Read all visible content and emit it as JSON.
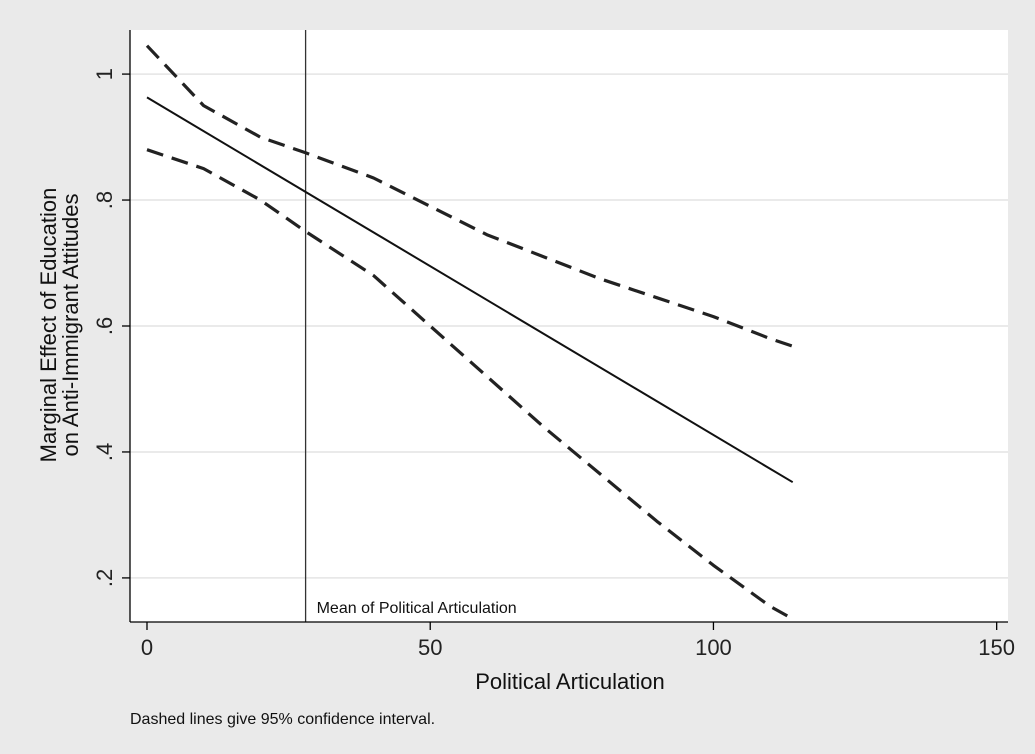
{
  "chart_data": {
    "type": "line",
    "title": "",
    "xlabel": "Political Articulation",
    "ylabel_line1": "Marginal Effect of Education",
    "ylabel_line2": "on Anti-Immigrant Attitudes",
    "note": "Dashed lines give 95% confidence interval.",
    "xlim": [
      -3,
      152
    ],
    "ylim": [
      0.13,
      1.07
    ],
    "xticks": [
      0,
      50,
      100,
      150
    ],
    "xtick_labels": [
      "0",
      "50",
      "100",
      "150"
    ],
    "yticks": [
      0.2,
      0.4,
      0.6,
      0.8,
      1.0
    ],
    "ytick_labels": [
      ".2",
      ".4",
      ".6",
      ".8",
      "1"
    ],
    "grid": true,
    "reference_line": {
      "x": 28,
      "label": "Mean of Political Articulation"
    },
    "series": [
      {
        "style": "solid",
        "color": "#111111",
        "x": [
          0,
          114
        ],
        "y": [
          0.963,
          0.352
        ]
      },
      {
        "style": "dashed",
        "color": "#222222",
        "x": [
          0,
          10,
          20,
          28,
          40,
          50,
          60,
          70,
          80,
          90,
          100,
          110,
          114
        ],
        "y": [
          1.045,
          0.95,
          0.9,
          0.875,
          0.835,
          0.79,
          0.745,
          0.71,
          0.675,
          0.645,
          0.615,
          0.58,
          0.568
        ]
      },
      {
        "style": "dashed",
        "color": "#222222",
        "x": [
          0,
          10,
          20,
          28,
          40,
          50,
          60,
          70,
          80,
          90,
          100,
          110,
          114
        ],
        "y": [
          0.88,
          0.85,
          0.8,
          0.75,
          0.68,
          0.6,
          0.52,
          0.44,
          0.365,
          0.29,
          0.22,
          0.155,
          0.135
        ]
      }
    ]
  }
}
